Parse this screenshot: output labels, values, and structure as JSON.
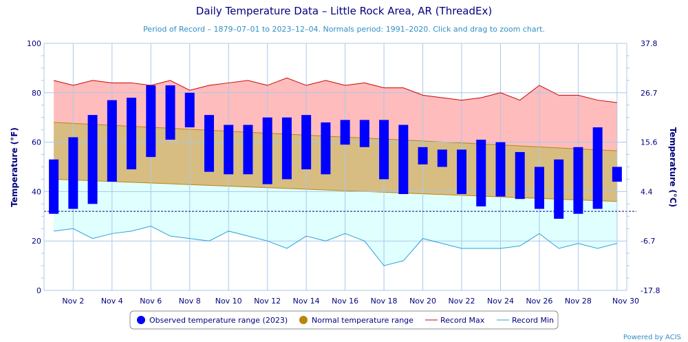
{
  "title": "Daily Temperature Data – Little Rock Area, AR (ThreadEx)",
  "subtitle": "Period of Record – 1879–07–01 to 2023–12–04. Normals period: 1991–2020. Click and drag to zoom chart.",
  "credit": "Powered by ACIS",
  "colors": {
    "observed": "#0000ff",
    "normal_fill": "#d8bd82",
    "normal_line": "#b8860b",
    "record_max_fill": "#ffbcbc",
    "record_max_line": "#cc0000",
    "record_min_fill": "#e0ffff",
    "record_min_line": "#2aa0d8",
    "grid": "#a8c8ea",
    "axis_text": "#00007f",
    "freezing_line": "#00007f"
  },
  "chart_data": {
    "type": "bar",
    "x_tick_labels": [
      "Nov 2",
      "Nov 4",
      "Nov 6",
      "Nov 8",
      "Nov 10",
      "Nov 12",
      "Nov 14",
      "Nov 16",
      "Nov 18",
      "Nov 20",
      "Nov 22",
      "Nov 24",
      "Nov 26",
      "Nov 28",
      "Nov 30"
    ],
    "y_left": {
      "label": "Temperature (°F)",
      "ticks": [
        "0",
        "20",
        "40",
        "60",
        "80",
        "100"
      ],
      "ylim": [
        0,
        100
      ]
    },
    "y_right": {
      "label": "Temperature (°C)",
      "ticks": [
        "-17.8",
        "-6.7",
        "4.4",
        "15.6",
        "26.7",
        "37.8"
      ]
    },
    "freezing_line": 32,
    "series": [
      {
        "name": "Observed temperature range (2023)",
        "type": "columnrange",
        "days": [
          1,
          2,
          3,
          4,
          5,
          6,
          7,
          8,
          9,
          10,
          11,
          12,
          13,
          14,
          15,
          16,
          17,
          18,
          19,
          20,
          21,
          22,
          23,
          24,
          25,
          26,
          27,
          28,
          29,
          30
        ],
        "low": [
          31,
          33,
          35,
          44,
          49,
          54,
          61,
          66,
          48,
          47,
          47,
          43,
          45,
          49,
          47,
          59,
          58,
          45,
          39,
          51,
          50,
          39,
          34,
          38,
          37,
          33,
          29,
          31,
          33,
          44
        ],
        "high": [
          53,
          62,
          71,
          77,
          78,
          83,
          83,
          80,
          71,
          67,
          67,
          70,
          70,
          71,
          68,
          69,
          69,
          69,
          67,
          58,
          57,
          57,
          61,
          60,
          56,
          50,
          53,
          58,
          66,
          50
        ]
      },
      {
        "name": "Normal temperature range",
        "type": "arearange",
        "days": [
          1,
          30
        ],
        "low": [
          45,
          36
        ],
        "high": [
          68,
          56.5
        ]
      },
      {
        "name": "Record Max",
        "type": "line",
        "days": [
          1,
          2,
          3,
          4,
          5,
          6,
          7,
          8,
          9,
          10,
          11,
          12,
          13,
          14,
          15,
          16,
          17,
          18,
          19,
          20,
          21,
          22,
          23,
          24,
          25,
          26,
          27,
          28,
          29,
          30
        ],
        "values": [
          85,
          83,
          85,
          84,
          84,
          83,
          85,
          81,
          83,
          84,
          85,
          83,
          86,
          83,
          85,
          83,
          84,
          82,
          82,
          79,
          78,
          77,
          78,
          80,
          77,
          83,
          79,
          79,
          77,
          76
        ]
      },
      {
        "name": "Record Min",
        "type": "line",
        "days": [
          1,
          2,
          3,
          4,
          5,
          6,
          7,
          8,
          9,
          10,
          11,
          12,
          13,
          14,
          15,
          16,
          17,
          18,
          19,
          20,
          21,
          22,
          23,
          24,
          25,
          26,
          27,
          28,
          29,
          30
        ],
        "values": [
          24,
          25,
          21,
          23,
          24,
          26,
          22,
          21,
          20,
          24,
          22,
          20,
          17,
          22,
          20,
          23,
          20,
          10,
          12,
          21,
          19,
          17,
          17,
          17,
          18,
          23,
          17,
          19,
          17,
          19
        ]
      }
    ],
    "legend": {
      "placement": "bottom-center",
      "items": [
        "Observed temperature range (2023)",
        "Normal temperature range",
        "Record Max",
        "Record Min"
      ]
    }
  }
}
